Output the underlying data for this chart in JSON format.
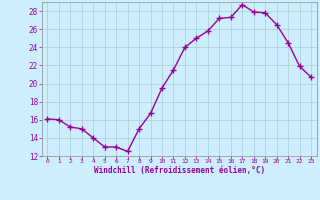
{
  "x": [
    0,
    1,
    2,
    3,
    4,
    5,
    6,
    7,
    8,
    9,
    10,
    11,
    12,
    13,
    14,
    15,
    16,
    17,
    18,
    19,
    20,
    21,
    22,
    23
  ],
  "y": [
    16.1,
    16.0,
    15.2,
    15.0,
    14.0,
    13.0,
    13.0,
    12.5,
    15.0,
    16.7,
    19.5,
    21.5,
    24.0,
    25.0,
    25.8,
    27.2,
    27.3,
    28.7,
    27.9,
    27.8,
    26.5,
    24.5,
    21.9,
    20.7
  ],
  "line_color": "#990099",
  "marker": "+",
  "markersize": 4,
  "linewidth": 1.0,
  "bg_color": "#cceeff",
  "grid_color": "#aacccc",
  "xlabel": "Windchill (Refroidissement éolien,°C)",
  "ylim": [
    12,
    29
  ],
  "xlim": [
    -0.5,
    23.5
  ],
  "yticks": [
    12,
    14,
    16,
    18,
    20,
    22,
    24,
    26,
    28
  ],
  "xticks": [
    0,
    1,
    2,
    3,
    4,
    5,
    6,
    7,
    8,
    9,
    10,
    11,
    12,
    13,
    14,
    15,
    16,
    17,
    18,
    19,
    20,
    21,
    22,
    23
  ],
  "tick_color": "#990099",
  "label_color": "#990099",
  "axis_color": "#999999",
  "font_family": "monospace"
}
